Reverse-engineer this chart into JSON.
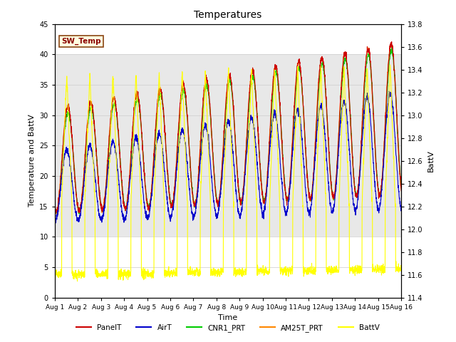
{
  "title": "Temperatures",
  "xlabel": "Time",
  "ylabel_left": "Temperature and BattV",
  "ylabel_right": "BattV",
  "xlim": [
    0,
    15
  ],
  "ylim_left": [
    0,
    45
  ],
  "ylim_right": [
    11.4,
    13.8
  ],
  "xtick_labels": [
    "Aug 1",
    "Aug 2",
    "Aug 3",
    "Aug 4",
    "Aug 5",
    "Aug 6",
    "Aug 7",
    "Aug 8",
    "Aug 9",
    "Aug 10",
    "Aug 11",
    "Aug 12",
    "Aug 13",
    "Aug 14",
    "Aug 15",
    "Aug 16"
  ],
  "yticks_left": [
    0,
    5,
    10,
    15,
    20,
    25,
    30,
    35,
    40,
    45
  ],
  "yticks_right": [
    11.4,
    11.6,
    11.8,
    12.0,
    12.2,
    12.4,
    12.6,
    12.8,
    13.0,
    13.2,
    13.4,
    13.6,
    13.8
  ],
  "legend_entries": [
    "PanelT",
    "AirT",
    "CNR1_PRT",
    "AM25T_PRT",
    "BattV"
  ],
  "colors": {
    "PanelT": "#cc0000",
    "AirT": "#0000cc",
    "CNR1_PRT": "#00cc00",
    "AM25T_PRT": "#ff8800",
    "BattV": "#ffff00"
  },
  "background_band": [
    10,
    40
  ],
  "grid_color": "#cccccc",
  "figsize": [
    6.4,
    4.8
  ],
  "dpi": 100
}
